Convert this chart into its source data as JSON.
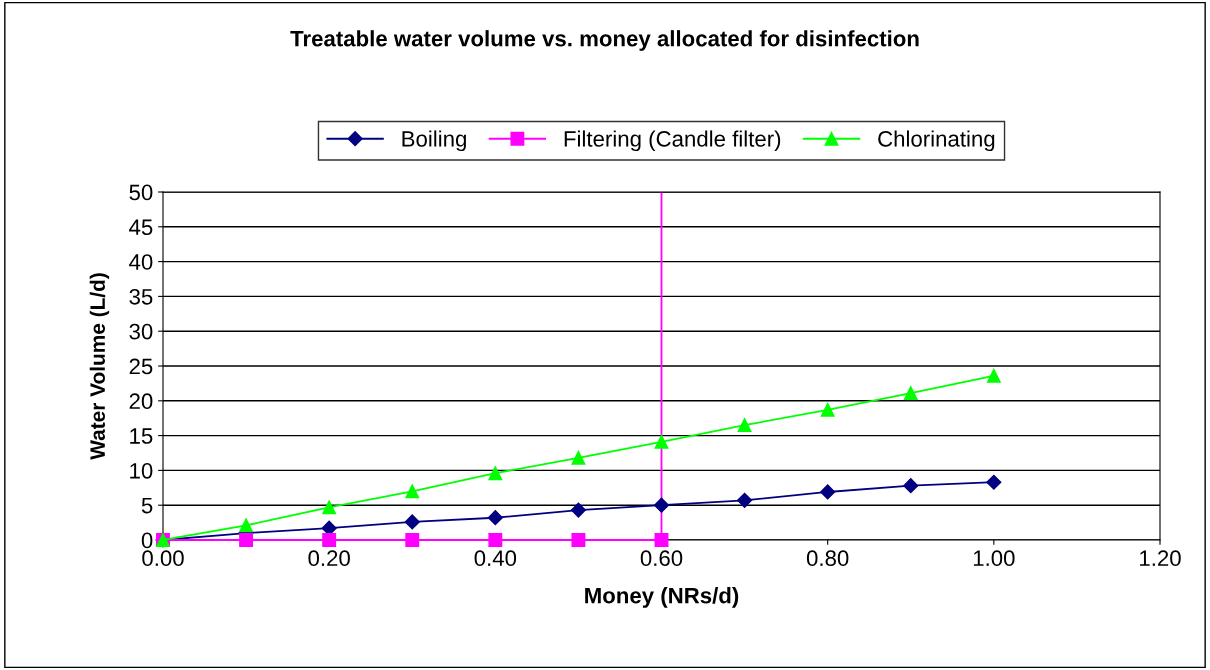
{
  "chart_data": {
    "type": "line",
    "title": "Treatable water volume vs. money allocated for disinfection",
    "xlabel": "Money (NRs/d)",
    "ylabel": "Water Volume (L/d)",
    "x": [
      0,
      0.1,
      0.2,
      0.3,
      0.4,
      0.5,
      0.6,
      0.7,
      0.8,
      0.9,
      1.0
    ],
    "series": [
      {
        "name": "Boiling",
        "color": "#000080",
        "marker": "diamond",
        "values": [
          0,
          1.0,
          1.7,
          2.6,
          3.2,
          4.3,
          5.0,
          5.7,
          6.9,
          7.8,
          8.3
        ]
      },
      {
        "name": "Filtering (Candle filter)",
        "color": "#ff00ff",
        "marker": "square",
        "values": [
          0,
          0,
          0,
          0,
          0,
          0,
          0,
          null,
          null,
          null,
          null
        ]
      },
      {
        "name": "Chlorinating",
        "color": "#00ff00",
        "marker": "triangle",
        "values": [
          0,
          2.1,
          4.7,
          7.0,
          9.6,
          11.8,
          14.1,
          16.5,
          18.7,
          21.1,
          23.6
        ]
      }
    ],
    "ref_lines": [
      {
        "axis": "x",
        "value": 0.6,
        "color": "#ff00ff"
      }
    ],
    "xlim": [
      0,
      1.2
    ],
    "xticks": [
      {
        "value": 0,
        "label": "0.00"
      },
      {
        "value": 0.2,
        "label": "0.20"
      },
      {
        "value": 0.4,
        "label": "0.40"
      },
      {
        "value": 0.6,
        "label": "0.60"
      },
      {
        "value": 0.8,
        "label": "0.80"
      },
      {
        "value": 1.0,
        "label": "1.00"
      },
      {
        "value": 1.2,
        "label": "1.20"
      }
    ],
    "ylim": [
      0,
      50
    ],
    "yticks": [
      0,
      5,
      10,
      15,
      20,
      25,
      30,
      35,
      40,
      45,
      50
    ],
    "grid": "y",
    "legend": "top"
  }
}
